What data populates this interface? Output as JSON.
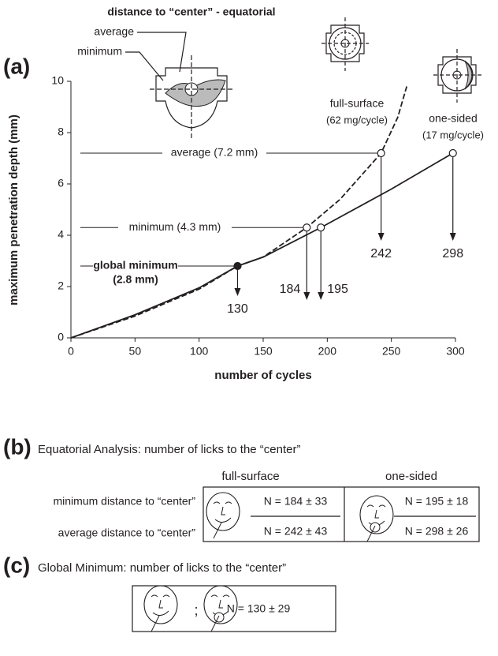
{
  "chart_data": {
    "type": "line",
    "panel_label": "(a)",
    "x_label": "number of cycles",
    "y_label": "maximum penetration depth (mm)",
    "xlim": [
      0,
      300
    ],
    "ylim": [
      0,
      10
    ],
    "xticks": [
      0,
      50,
      100,
      150,
      200,
      250,
      300
    ],
    "yticks": [
      0,
      2,
      4,
      6,
      8,
      10
    ],
    "series": [
      {
        "name": "full-surface",
        "rate": "(62 mg/cycle)",
        "color": "#231f20",
        "dash": true,
        "x": [
          0,
          50,
          100,
          130,
          150,
          184,
          210,
          242,
          255,
          262
        ],
        "values": [
          0,
          0.85,
          1.9,
          2.8,
          3.15,
          4.3,
          5.4,
          7.2,
          8.6,
          9.8
        ]
      },
      {
        "name": "one-sided",
        "rate": "(17 mg/cycle)",
        "color": "#231f20",
        "dash": false,
        "x": [
          0,
          50,
          100,
          130,
          150,
          195,
          250,
          298
        ],
        "values": [
          0,
          0.9,
          1.95,
          2.8,
          3.15,
          4.3,
          5.8,
          7.2
        ]
      }
    ],
    "points": [
      {
        "x": 130,
        "y": 2.8,
        "filled": true
      },
      {
        "x": 184,
        "y": 4.3,
        "filled": false
      },
      {
        "x": 195,
        "y": 4.3,
        "filled": false
      },
      {
        "x": 242,
        "y": 7.2,
        "filled": false
      },
      {
        "x": 298,
        "y": 7.2,
        "filled": false
      }
    ],
    "annotations": {
      "average": "average (7.2 mm)",
      "minimum": "minimum (4.3 mm)",
      "global_minimum": "global minimum",
      "global_minimum_value": "(2.8 mm)",
      "inset_title": "distance to “center” - equatorial",
      "inset_average": "average",
      "inset_minimum": "minimum"
    }
  },
  "panel_b": {
    "label": "(b)",
    "title": "Equatorial Analysis: number of licks to the “center”",
    "columns": [
      "full-surface",
      "one-sided"
    ],
    "rows": [
      "minimum distance to “center”",
      "average distance to “center”"
    ],
    "cells": [
      [
        "N = 184 ± 33",
        "N = 195 ± 18"
      ],
      [
        "N = 242 ± 43",
        "N = 298 ± 26"
      ]
    ]
  },
  "panel_c": {
    "label": "(c)",
    "title": "Global Minimum: number of licks to the “center”",
    "separator": ";",
    "result": "N = 130 ± 29"
  }
}
